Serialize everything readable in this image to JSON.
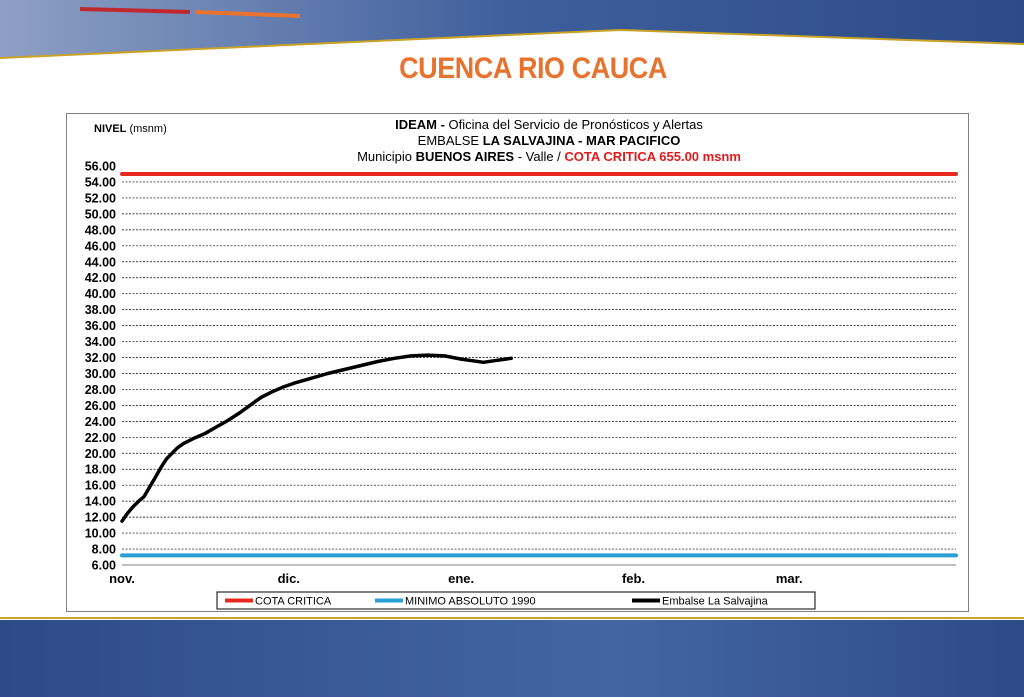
{
  "slide": {
    "title": "CUENCA RIO CAUCA"
  },
  "colors": {
    "title": "#e8732e",
    "cota_critica": "#e8281e",
    "minimo": "#2a9fd6",
    "embalse": "#000000",
    "critical_text": "#e31a1c",
    "banner": "#2d4b86"
  },
  "chart_data": {
    "type": "line",
    "title_lines": [
      [
        {
          "text": "IDEAM - ",
          "bold": true,
          "color": "#000000"
        },
        {
          "text": "Oficina del Servicio de Pronósticos y Alertas",
          "bold": false,
          "color": "#000000"
        }
      ],
      [
        {
          "text": "EMBALSE ",
          "bold": false,
          "color": "#000000"
        },
        {
          "text": "LA SALVAJINA - MAR PACIFICO",
          "bold": true,
          "color": "#000000"
        }
      ],
      [
        {
          "text": "Municipio ",
          "bold": false,
          "color": "#000000"
        },
        {
          "text": "BUENOS AIRES",
          "bold": true,
          "color": "#000000"
        },
        {
          "text": " - Valle  /  ",
          "bold": false,
          "color": "#000000"
        },
        {
          "text": "COTA CRITICA 655.00 msnm",
          "bold": true,
          "color": "#e31a1c"
        }
      ]
    ],
    "ylabel_bold": "NIVEL",
    "ylabel_unit": " (msnm)",
    "ylim": [
      6,
      56
    ],
    "ytick_step": 2,
    "grid": true,
    "xlim": [
      "2016-11-01",
      "2017-03-31"
    ],
    "x_ticks": [
      {
        "date": "2016-11-01",
        "label": "nov."
      },
      {
        "date": "2016-12-01",
        "label": "dic."
      },
      {
        "date": "2017-01-01",
        "label": "ene."
      },
      {
        "date": "2017-02-01",
        "label": "feb."
      },
      {
        "date": "2017-03-01",
        "label": "mar."
      }
    ],
    "legend_position": "bottom",
    "series": [
      {
        "name": "COTA CRITICA",
        "color": "#e8281e",
        "x": [
          "2016-11-01",
          "2017-03-31"
        ],
        "y": [
          55.0,
          55.0
        ]
      },
      {
        "name": "MINIMO ABSOLUTO 1990",
        "color": "#2a9fd6",
        "x": [
          "2016-11-01",
          "2017-03-31"
        ],
        "y": [
          7.2,
          7.2
        ]
      },
      {
        "name": "Embalse La Salvajina",
        "color": "#000000",
        "x": [
          "2016-11-01",
          "2016-11-02",
          "2016-11-03",
          "2016-11-04",
          "2016-11-05",
          "2016-11-06",
          "2016-11-07",
          "2016-11-08",
          "2016-11-09",
          "2016-11-10",
          "2016-11-11",
          "2016-11-12",
          "2016-11-14",
          "2016-11-16",
          "2016-11-18",
          "2016-11-20",
          "2016-11-22",
          "2016-11-24",
          "2016-11-26",
          "2016-11-28",
          "2016-11-30",
          "2016-12-02",
          "2016-12-05",
          "2016-12-08",
          "2016-12-11",
          "2016-12-14",
          "2016-12-17",
          "2016-12-20",
          "2016-12-23",
          "2016-12-26",
          "2016-12-29",
          "2017-01-01",
          "2017-01-03",
          "2017-01-05",
          "2017-01-07",
          "2017-01-09",
          "2017-01-10"
        ],
        "y": [
          11.5,
          12.5,
          13.3,
          14.0,
          14.6,
          15.8,
          17.0,
          18.2,
          19.3,
          20.0,
          20.7,
          21.2,
          21.9,
          22.5,
          23.3,
          24.1,
          25.0,
          26.0,
          27.0,
          27.7,
          28.3,
          28.8,
          29.4,
          30.0,
          30.5,
          31.0,
          31.5,
          31.9,
          32.2,
          32.3,
          32.2,
          31.8,
          31.6,
          31.4,
          31.6,
          31.8,
          31.9
        ]
      }
    ]
  }
}
